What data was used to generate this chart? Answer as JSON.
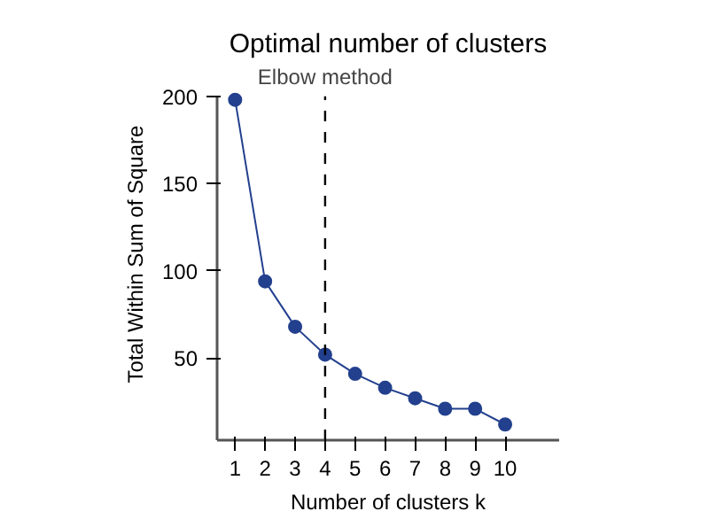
{
  "chart_data": {
    "type": "line",
    "title": "Optimal number of clusters",
    "xlabel": "Number of clusters k",
    "ylabel": "Total Within Sum of Square",
    "x": [
      1,
      2,
      3,
      4,
      5,
      6,
      7,
      8,
      9,
      10
    ],
    "series": [
      {
        "color": "#23408e",
        "values": [
          198,
          94,
          68,
          52,
          41,
          33,
          27,
          21,
          21,
          12
        ]
      }
    ],
    "marker": "circle",
    "line_style": "solid",
    "grid": false,
    "xlim": [
      0.4,
      11.8
    ],
    "xticks": [
      1,
      2,
      3,
      4,
      5,
      6,
      7,
      8,
      9,
      10
    ],
    "ylim": [
      3,
      200
    ],
    "yticks": [
      50,
      100,
      150,
      200
    ],
    "ref_lines": [
      {
        "axis": "x",
        "value": 4,
        "label": "Elbow method",
        "color": "#000000",
        "line_style": "dashed"
      }
    ]
  }
}
